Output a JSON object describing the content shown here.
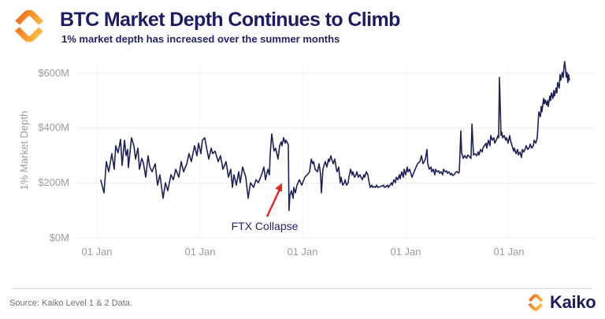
{
  "header": {
    "title": "BTC Market Depth Continues to Climb",
    "subtitle": "1% market depth has increased over the summer months"
  },
  "footer": {
    "source": "Source: Kaiko Level 1 & 2 Data.",
    "brand": "Kaiko"
  },
  "colors": {
    "brand_navy": "#1c1c66",
    "brand_orange_dark": "#F1701F",
    "brand_orange_light": "#FCB23E",
    "tick_gray": "#9b9b9b",
    "arrow_red": "#e8251c"
  },
  "chart_data": {
    "type": "line",
    "title": "BTC Market Depth Continues to Climb",
    "subtitle": "1% market depth has increased over the summer months",
    "xlabel": "",
    "ylabel": "1% Market Depth",
    "unit": "USD millions",
    "ylim": [
      0,
      650
    ],
    "x_unit": "years since first 01 Jan tick",
    "grid": true,
    "grid_color_h": "#ececec",
    "grid_color_v": "#f4f4f4",
    "line_color": "#1d2157",
    "legend": "none",
    "y_ticks": [
      {
        "value": 600,
        "label": "$600M"
      },
      {
        "value": 400,
        "label": "$400M"
      },
      {
        "value": 200,
        "label": "$200M"
      },
      {
        "value": 0,
        "label": "$0M"
      }
    ],
    "x_ticks": [
      {
        "t": 0,
        "label": "01 Jan"
      },
      {
        "t": 1,
        "label": "01 Jan"
      },
      {
        "t": 2,
        "label": "01 Jan"
      },
      {
        "t": 3,
        "label": "01 Jan"
      },
      {
        "t": 4,
        "label": "01 Jan"
      }
    ],
    "annotation": {
      "text": "FTX Collapse",
      "arrow_color": "#e8251c",
      "points_at_t": 1.865
    },
    "series": [
      {
        "name": "BTC 1% market depth ($M)",
        "points": [
          [
            0.038,
            210
          ],
          [
            0.069,
            164
          ],
          [
            0.092,
            278
          ],
          [
            0.115,
            241
          ],
          [
            0.145,
            307
          ],
          [
            0.168,
            250
          ],
          [
            0.183,
            336
          ],
          [
            0.206,
            310
          ],
          [
            0.229,
            359
          ],
          [
            0.245,
            264
          ],
          [
            0.268,
            356
          ],
          [
            0.283,
            300
          ],
          [
            0.298,
            322
          ],
          [
            0.306,
            256
          ],
          [
            0.336,
            365
          ],
          [
            0.359,
            336
          ],
          [
            0.375,
            287
          ],
          [
            0.398,
            327
          ],
          [
            0.413,
            250
          ],
          [
            0.436,
            290
          ],
          [
            0.451,
            273
          ],
          [
            0.474,
            221
          ],
          [
            0.497,
            299
          ],
          [
            0.512,
            260
          ],
          [
            0.535,
            241
          ],
          [
            0.566,
            270
          ],
          [
            0.589,
            192
          ],
          [
            0.612,
            230
          ],
          [
            0.642,
            144
          ],
          [
            0.665,
            201
          ],
          [
            0.688,
            172
          ],
          [
            0.719,
            230
          ],
          [
            0.742,
            212
          ],
          [
            0.765,
            250
          ],
          [
            0.795,
            221
          ],
          [
            0.818,
            278
          ],
          [
            0.841,
            241
          ],
          [
            0.872,
            270
          ],
          [
            0.894,
            307
          ],
          [
            0.917,
            278
          ],
          [
            0.948,
            336
          ],
          [
            0.971,
            299
          ],
          [
            0.986,
            345
          ],
          [
            1.009,
            307
          ],
          [
            1.024,
            356
          ],
          [
            1.047,
            365
          ],
          [
            1.07,
            316
          ],
          [
            1.086,
            287
          ],
          [
            1.109,
            327
          ],
          [
            1.124,
            307
          ],
          [
            1.147,
            316
          ],
          [
            1.177,
            278
          ],
          [
            1.2,
            299
          ],
          [
            1.223,
            250
          ],
          [
            1.254,
            278
          ],
          [
            1.277,
            221
          ],
          [
            1.3,
            250
          ],
          [
            1.315,
            184
          ],
          [
            1.33,
            230
          ],
          [
            1.353,
            192
          ],
          [
            1.376,
            241
          ],
          [
            1.391,
            201
          ],
          [
            1.414,
            258
          ],
          [
            1.445,
            221
          ],
          [
            1.468,
            144
          ],
          [
            1.491,
            201
          ],
          [
            1.521,
            184
          ],
          [
            1.544,
            212
          ],
          [
            1.567,
            201
          ],
          [
            1.598,
            230
          ],
          [
            1.621,
            258
          ],
          [
            1.636,
            212
          ],
          [
            1.659,
            250
          ],
          [
            1.674,
            230
          ],
          [
            1.682,
            307
          ],
          [
            1.697,
            379
          ],
          [
            1.712,
            336
          ],
          [
            1.72,
            316
          ],
          [
            1.735,
            327
          ],
          [
            1.751,
            299
          ],
          [
            1.758,
            287
          ],
          [
            1.774,
            336
          ],
          [
            1.789,
            350
          ],
          [
            1.796,
            336
          ],
          [
            1.812,
            365
          ],
          [
            1.827,
            345
          ],
          [
            1.835,
            356
          ],
          [
            1.85,
            345
          ],
          [
            1.858,
            340
          ],
          [
            1.865,
            100
          ],
          [
            1.873,
            155
          ],
          [
            1.888,
            172
          ],
          [
            1.904,
            144
          ],
          [
            1.911,
            184
          ],
          [
            1.926,
            164
          ],
          [
            1.942,
            192
          ],
          [
            1.965,
            212
          ],
          [
            1.988,
            192
          ],
          [
            2.018,
            221
          ],
          [
            2.041,
            230
          ],
          [
            2.064,
            241
          ],
          [
            2.08,
            287
          ],
          [
            2.095,
            270
          ],
          [
            2.103,
            278
          ],
          [
            2.118,
            250
          ],
          [
            2.141,
            241
          ],
          [
            2.156,
            270
          ],
          [
            2.171,
            230
          ],
          [
            2.179,
            164
          ],
          [
            2.194,
            250
          ],
          [
            2.209,
            270
          ],
          [
            2.217,
            278
          ],
          [
            2.232,
            258
          ],
          [
            2.248,
            287
          ],
          [
            2.255,
            278
          ],
          [
            2.271,
            299
          ],
          [
            2.286,
            278
          ],
          [
            2.294,
            270
          ],
          [
            2.309,
            287
          ],
          [
            2.324,
            250
          ],
          [
            2.332,
            241
          ],
          [
            2.347,
            258
          ],
          [
            2.362,
            201
          ],
          [
            2.37,
            221
          ],
          [
            2.385,
            192
          ],
          [
            2.401,
            201
          ],
          [
            2.408,
            212
          ],
          [
            2.423,
            192
          ],
          [
            2.439,
            201
          ],
          [
            2.446,
            221
          ],
          [
            2.462,
            250
          ],
          [
            2.477,
            230
          ],
          [
            2.485,
            241
          ],
          [
            2.5,
            221
          ],
          [
            2.515,
            230
          ],
          [
            2.523,
            241
          ],
          [
            2.538,
            221
          ],
          [
            2.553,
            230
          ],
          [
            2.576,
            212
          ],
          [
            2.592,
            230
          ],
          [
            2.599,
            221
          ],
          [
            2.615,
            241
          ],
          [
            2.63,
            230
          ],
          [
            2.637,
            212
          ],
          [
            2.653,
            184
          ],
          [
            2.668,
            192
          ],
          [
            2.676,
            184
          ],
          [
            2.691,
            187
          ],
          [
            2.706,
            184
          ],
          [
            2.714,
            192
          ],
          [
            2.729,
            184
          ],
          [
            2.752,
            187
          ],
          [
            2.783,
            192
          ],
          [
            2.79,
            184
          ],
          [
            2.806,
            187
          ],
          [
            2.821,
            192
          ],
          [
            2.829,
            184
          ],
          [
            2.844,
            192
          ],
          [
            2.859,
            201
          ],
          [
            2.867,
            192
          ],
          [
            2.882,
            212
          ],
          [
            2.897,
            201
          ],
          [
            2.905,
            221
          ],
          [
            2.92,
            212
          ],
          [
            2.936,
            230
          ],
          [
            2.943,
            215
          ],
          [
            2.959,
            241
          ],
          [
            2.974,
            221
          ],
          [
            2.982,
            250
          ],
          [
            2.997,
            230
          ],
          [
            3.012,
            258
          ],
          [
            3.02,
            241
          ],
          [
            3.035,
            250
          ],
          [
            3.058,
            221
          ],
          [
            3.089,
            250
          ],
          [
            3.112,
            270
          ],
          [
            3.135,
            278
          ],
          [
            3.15,
            299
          ],
          [
            3.165,
            270
          ],
          [
            3.188,
            287
          ],
          [
            3.203,
            322
          ],
          [
            3.211,
            270
          ],
          [
            3.226,
            250
          ],
          [
            3.242,
            258
          ],
          [
            3.249,
            241
          ],
          [
            3.264,
            250
          ],
          [
            3.28,
            230
          ],
          [
            3.287,
            250
          ],
          [
            3.303,
            241
          ],
          [
            3.318,
            244
          ],
          [
            3.326,
            235
          ],
          [
            3.341,
            241
          ],
          [
            3.356,
            230
          ],
          [
            3.364,
            250
          ],
          [
            3.379,
            241
          ],
          [
            3.394,
            244
          ],
          [
            3.402,
            235
          ],
          [
            3.417,
            241
          ],
          [
            3.433,
            230
          ],
          [
            3.44,
            235
          ],
          [
            3.456,
            227
          ],
          [
            3.471,
            232
          ],
          [
            3.479,
            238
          ],
          [
            3.494,
            242
          ],
          [
            3.509,
            236
          ],
          [
            3.517,
            240
          ],
          [
            3.532,
            390
          ],
          [
            3.54,
            310
          ],
          [
            3.555,
            290
          ],
          [
            3.57,
            300
          ],
          [
            3.586,
            290
          ],
          [
            3.6,
            302
          ],
          [
            3.617,
            295
          ],
          [
            3.631,
            290
          ],
          [
            3.64,
            415
          ],
          [
            3.655,
            302
          ],
          [
            3.67,
            307
          ],
          [
            3.685,
            299
          ],
          [
            3.7,
            313
          ],
          [
            3.708,
            302
          ],
          [
            3.723,
            322
          ],
          [
            3.739,
            313
          ],
          [
            3.746,
            327
          ],
          [
            3.761,
            336
          ],
          [
            3.777,
            345
          ],
          [
            3.784,
            327
          ],
          [
            3.8,
            356
          ],
          [
            3.815,
            336
          ],
          [
            3.823,
            373
          ],
          [
            3.838,
            356
          ],
          [
            3.853,
            365
          ],
          [
            3.861,
            345
          ],
          [
            3.876,
            356
          ],
          [
            3.892,
            373
          ],
          [
            3.899,
            365
          ],
          [
            3.907,
            585
          ],
          [
            3.922,
            373
          ],
          [
            3.93,
            385
          ],
          [
            3.937,
            365
          ],
          [
            3.953,
            373
          ],
          [
            3.968,
            356
          ],
          [
            3.976,
            365
          ],
          [
            3.991,
            345
          ],
          [
            4.006,
            373
          ],
          [
            4.014,
            356
          ],
          [
            4.029,
            336
          ],
          [
            4.045,
            316
          ],
          [
            4.052,
            327
          ],
          [
            4.068,
            307
          ],
          [
            4.083,
            322
          ],
          [
            4.09,
            302
          ],
          [
            4.106,
            313
          ],
          [
            4.121,
            293
          ],
          [
            4.129,
            322
          ],
          [
            4.144,
            313
          ],
          [
            4.159,
            327
          ],
          [
            4.167,
            336
          ],
          [
            4.182,
            322
          ],
          [
            4.198,
            330
          ],
          [
            4.205,
            342
          ],
          [
            4.22,
            327
          ],
          [
            4.236,
            336
          ],
          [
            4.243,
            356
          ],
          [
            4.259,
            345
          ],
          [
            4.274,
            365
          ],
          [
            4.281,
            413
          ],
          [
            4.289,
            459
          ],
          [
            4.304,
            442
          ],
          [
            4.312,
            479
          ],
          [
            4.319,
            459
          ],
          [
            4.335,
            508
          ],
          [
            4.342,
            488
          ],
          [
            4.35,
            503
          ],
          [
            4.365,
            485
          ],
          [
            4.373,
            500
          ],
          [
            4.38,
            479
          ],
          [
            4.396,
            517
          ],
          [
            4.403,
            500
          ],
          [
            4.411,
            528
          ],
          [
            4.426,
            508
          ],
          [
            4.434,
            537
          ],
          [
            4.441,
            517
          ],
          [
            4.457,
            546
          ],
          [
            4.464,
            528
          ],
          [
            4.472,
            566
          ],
          [
            4.487,
            546
          ],
          [
            4.495,
            595
          ],
          [
            4.502,
            575
          ],
          [
            4.517,
            603
          ],
          [
            4.525,
            585
          ],
          [
            4.533,
            623
          ],
          [
            4.54,
            643
          ],
          [
            4.548,
            615
          ],
          [
            4.555,
            586
          ],
          [
            4.563,
            603
          ],
          [
            4.571,
            566
          ],
          [
            4.578,
            595
          ],
          [
            4.586,
            575
          ]
        ]
      }
    ]
  }
}
